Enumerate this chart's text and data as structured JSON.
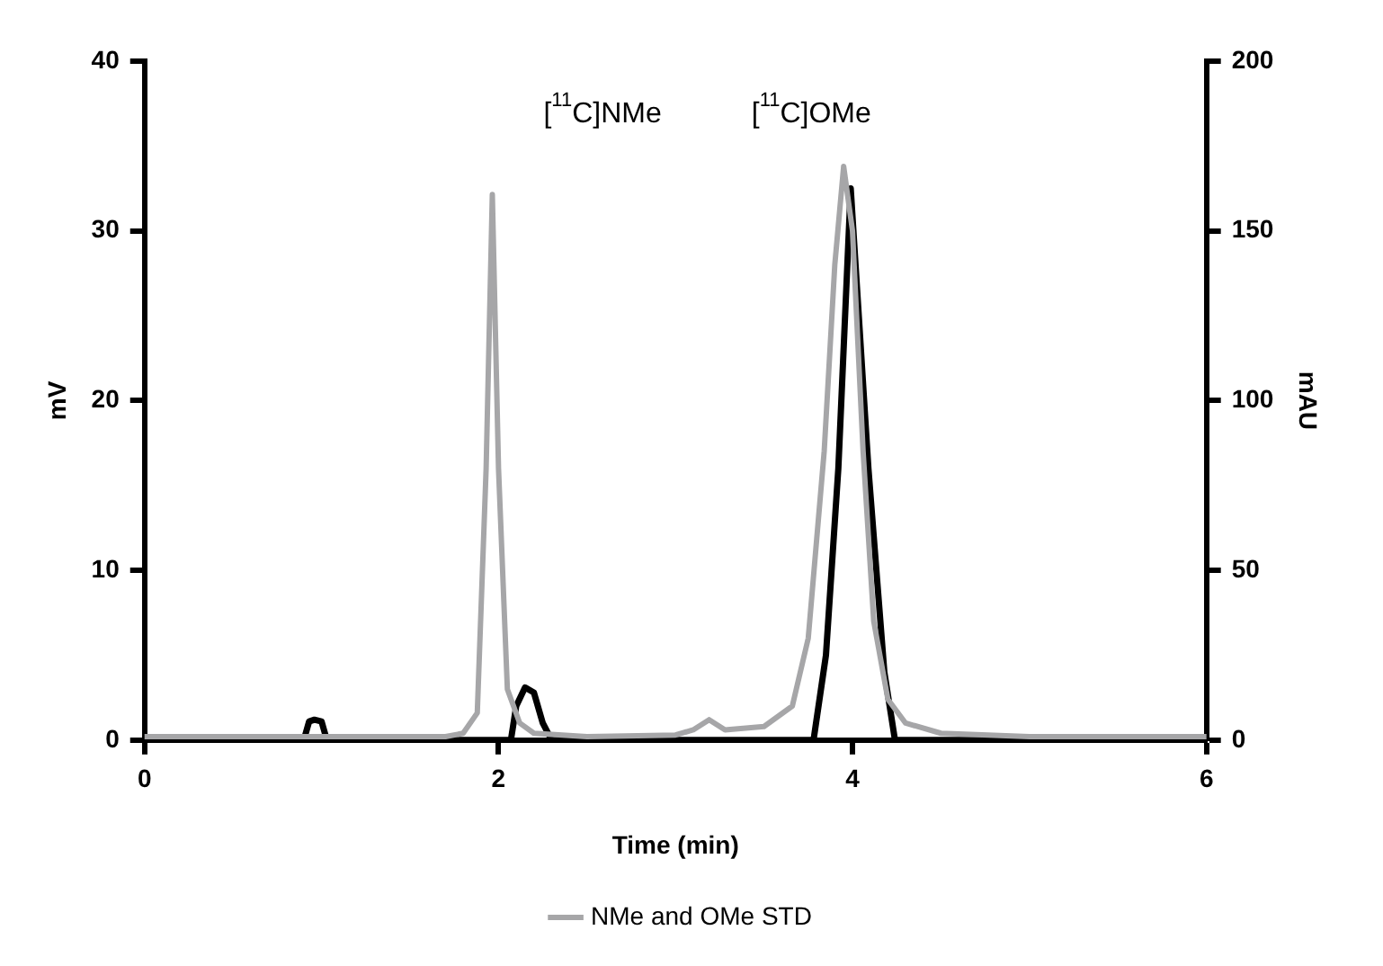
{
  "chart_data": {
    "type": "line",
    "xlabel": "Time (min)",
    "ylabel": "mV",
    "y2label": "mAU",
    "xlim": [
      0,
      6
    ],
    "xticks": [
      0,
      2,
      4,
      6
    ],
    "ylim": [
      0,
      40
    ],
    "yticks": [
      0,
      10,
      20,
      30,
      40
    ],
    "y2lim": [
      0,
      200
    ],
    "y2ticks": [
      0,
      50,
      100,
      150,
      200
    ],
    "grid": false,
    "legend": "bottom",
    "marker": "none",
    "line_style": "solid",
    "annotations": [
      "[$^{11}$C]NMe",
      "[$^{11}$C]OMe"
    ],
    "series": [
      {
        "name": "NMe and OMe STD",
        "color": "#a6a6a8",
        "axis": "y2",
        "x": [
          0,
          1,
          1.7,
          1.8,
          1.88,
          1.93,
          1.965,
          2.0,
          2.05,
          2.12,
          2.2,
          2.5,
          3.0,
          3.1,
          3.19,
          3.28,
          3.5,
          3.66,
          3.75,
          3.84,
          3.9,
          3.95,
          4.0,
          4.06,
          4.12,
          4.2,
          4.3,
          4.5,
          5,
          6
        ],
        "values": [
          1,
          1,
          1,
          2,
          8,
          80,
          160.7,
          80,
          15,
          5,
          2,
          1,
          1.5,
          3,
          6,
          3,
          4,
          10,
          30,
          85,
          140,
          169,
          150,
          85,
          35,
          12,
          5,
          2,
          1,
          1
        ]
      },
      {
        "color": "#000000",
        "axis": "y",
        "x": [
          0,
          0.9,
          0.93,
          0.96,
          1.0,
          1.03,
          2.07,
          2.1,
          2.15,
          2.2,
          2.25,
          2.3,
          3.78,
          3.85,
          3.92,
          3.99,
          4.09,
          4.18,
          4.24,
          6
        ],
        "values": [
          0,
          0,
          1.1,
          1.2,
          1.1,
          0,
          0,
          2,
          3.1,
          2.8,
          1,
          0,
          0,
          5,
          16,
          32.5,
          16,
          4,
          0,
          0
        ]
      }
    ]
  }
}
